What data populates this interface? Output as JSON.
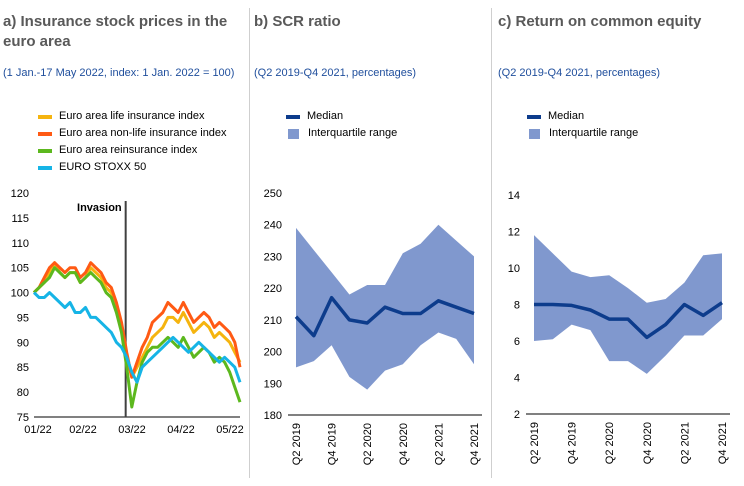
{
  "panels": [
    {
      "title": "a) Insurance stock prices in the euro area",
      "subtitle": "(1 Jan.-17 May 2022, index: 1 Jan. 2022 = 100)"
    },
    {
      "title": "b) SCR ratio",
      "subtitle": "(Q2 2019-Q4 2021, percentages)"
    },
    {
      "title": "c) Return on common equity",
      "subtitle": "(Q2 2019-Q4 2021, percentages)"
    }
  ],
  "chart_data": [
    {
      "type": "line",
      "title": "a) Insurance stock prices in the euro area",
      "subtitle": "(1 Jan.-17 May 2022, index: 1 Jan. 2022 = 100)",
      "x_tick_labels": [
        "01/22",
        "02/22",
        "03/22",
        "04/22",
        "05/22"
      ],
      "ylim": [
        75,
        120
      ],
      "y_ticks": [
        75,
        80,
        85,
        90,
        95,
        100,
        105,
        110,
        115,
        120
      ],
      "annotation": {
        "label": "Invasion",
        "x": 0.445
      },
      "legend_position": "top",
      "series": [
        {
          "name": "Euro area life insurance index",
          "color": "#f5b40f",
          "values": [
            100,
            101,
            102,
            104,
            106,
            104,
            103,
            104,
            104,
            102,
            103,
            105,
            104,
            103,
            101,
            100,
            97,
            93,
            87,
            83,
            85,
            87,
            89,
            91,
            92,
            93,
            95,
            95,
            94,
            96,
            94,
            92,
            93,
            94,
            93,
            91,
            92,
            91,
            90,
            88,
            86
          ]
        },
        {
          "name": "Euro area non-life insurance index",
          "color": "#ff5a14",
          "values": [
            100,
            101,
            103,
            105,
            106,
            105,
            104,
            105,
            105,
            103,
            104,
            106,
            105,
            104,
            102,
            101,
            98,
            94,
            88,
            83,
            86,
            89,
            91,
            94,
            95,
            96,
            98,
            97,
            96,
            98,
            96,
            94,
            95,
            96,
            95,
            93,
            94,
            93,
            92,
            90,
            85
          ]
        },
        {
          "name": "Euro area reinsurance index",
          "color": "#5cb81e",
          "values": [
            100,
            101,
            102,
            103,
            105,
            104,
            103,
            104,
            104,
            102,
            103,
            104,
            103,
            102,
            100,
            99,
            96,
            92,
            85,
            77,
            82,
            86,
            88,
            89,
            89,
            90,
            91,
            90,
            89,
            91,
            89,
            87,
            88,
            89,
            88,
            86,
            87,
            86,
            84,
            81,
            78
          ]
        },
        {
          "name": "EURO STOXX 50",
          "color": "#16b4e6",
          "values": [
            100,
            99,
            99,
            100,
            99,
            98,
            97,
            98,
            96,
            96,
            97,
            95,
            95,
            94,
            93,
            92,
            90,
            89,
            87,
            84,
            82,
            85,
            86,
            87,
            88,
            89,
            90,
            91,
            90,
            89,
            88,
            89,
            90,
            89,
            88,
            87,
            86,
            87,
            86,
            85,
            82
          ]
        }
      ]
    },
    {
      "type": "area",
      "title": "b) SCR ratio",
      "subtitle": "(Q2 2019-Q4 2021, percentages)",
      "x": [
        "Q2 2019",
        "Q3 2019",
        "Q4 2019",
        "Q1 2020",
        "Q2 2020",
        "Q3 2020",
        "Q4 2020",
        "Q1 2021",
        "Q2 2021",
        "Q3 2021",
        "Q4 2021"
      ],
      "x_tick_labels": [
        "Q2 2019",
        "",
        "Q4 2019",
        "",
        "Q2 2020",
        "",
        "Q4 2020",
        "",
        "Q2 2021",
        "",
        "Q4 2021"
      ],
      "ylim": [
        180,
        250
      ],
      "y_ticks": [
        180,
        190,
        200,
        210,
        220,
        230,
        240,
        250
      ],
      "legend_position": "top",
      "series": [
        {
          "name": "Median",
          "color": "#0d3c8c",
          "values": [
            211,
            205,
            217,
            210,
            209,
            214,
            212,
            212,
            216,
            214,
            212
          ]
        },
        {
          "name": "Interquartile range",
          "color": "#8098ce",
          "lower": [
            195,
            197,
            202,
            192,
            188,
            194,
            196,
            202,
            206,
            204,
            196
          ],
          "upper": [
            239,
            232,
            225,
            218,
            221,
            221,
            231,
            234,
            240,
            235,
            230
          ]
        }
      ]
    },
    {
      "type": "area",
      "title": "c) Return on common equity",
      "subtitle": "(Q2 2019-Q4 2021, percentages)",
      "x": [
        "Q2 2019",
        "Q3 2019",
        "Q4 2019",
        "Q1 2020",
        "Q2 2020",
        "Q3 2020",
        "Q4 2020",
        "Q1 2021",
        "Q2 2021",
        "Q3 2021",
        "Q4 2021"
      ],
      "x_tick_labels": [
        "Q2 2019",
        "",
        "Q4 2019",
        "",
        "Q2 2020",
        "",
        "Q4 2020",
        "",
        "Q2 2021",
        "",
        "Q4 2021"
      ],
      "ylim": [
        2,
        14
      ],
      "y_ticks": [
        2,
        4,
        6,
        8,
        10,
        12,
        14
      ],
      "legend_position": "top",
      "series": [
        {
          "name": "Median",
          "color": "#0d3c8c",
          "values": [
            8.0,
            8.0,
            7.95,
            7.7,
            7.2,
            7.2,
            6.2,
            6.9,
            8.0,
            7.4,
            8.1
          ]
        },
        {
          "name": "Interquartile range",
          "color": "#8098ce",
          "lower": [
            6.0,
            6.1,
            6.9,
            6.6,
            4.9,
            4.9,
            4.2,
            5.2,
            6.3,
            6.3,
            7.2
          ],
          "upper": [
            11.8,
            10.8,
            9.8,
            9.5,
            9.6,
            8.9,
            8.1,
            8.3,
            9.2,
            10.7,
            10.8
          ]
        }
      ]
    }
  ]
}
